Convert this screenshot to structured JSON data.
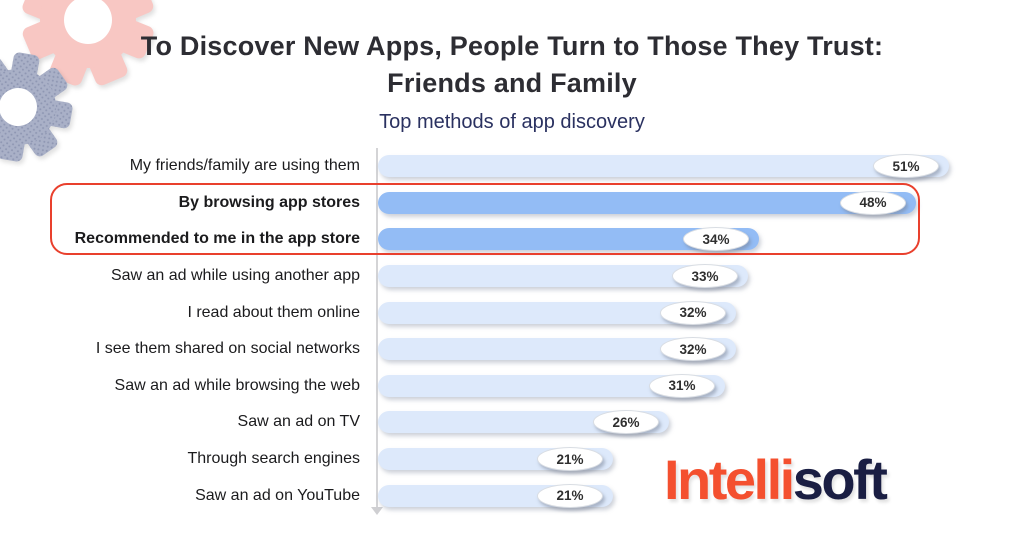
{
  "header": {
    "title_line1": "To Discover New Apps, People Turn to Those They Trust:",
    "title_line2": "Friends and Family",
    "subtitle": "Top methods of app discovery"
  },
  "chart_data": {
    "type": "bar",
    "orientation": "horizontal",
    "title": "To Discover New Apps, People Turn to Those They Trust: Friends and Family",
    "subtitle": "Top methods of app discovery",
    "unit": "%",
    "categories": [
      "My friends/family are using them",
      "By browsing app stores",
      "Recommended to me in the app store",
      "Saw an ad while using another app",
      "I read about them online",
      "I see them shared on social networks",
      "Saw an ad while browsing the web",
      "Saw an ad on TV",
      "Through search engines",
      "Saw an ad on YouTube"
    ],
    "values": [
      51,
      48,
      34,
      33,
      32,
      32,
      31,
      26,
      21,
      21
    ],
    "value_labels": [
      "51%",
      "48%",
      "34%",
      "33%",
      "32%",
      "32%",
      "31%",
      "26%",
      "21%",
      "21%"
    ],
    "highlighted_indexes": [
      1,
      2
    ],
    "highlight_note": "red rounded outline drawn around the two app-store rows",
    "xlim": [
      0,
      53
    ],
    "grid": false,
    "legend": false,
    "colors": {
      "bar_default": "#dde9fb",
      "bar_highlight": "#93bcf5",
      "highlight_outline": "#e9402d",
      "value_badge_bg": "#ffffff",
      "axis_line": "#d4d4d6",
      "title_text": "#2d2d33",
      "subtitle_text": "#2a3160",
      "label_text": "#1b1b1d"
    }
  },
  "logo": {
    "part1": "Intelli",
    "part2": "soft",
    "part1_color": "#f4502f",
    "part2_color": "#1a1e43"
  },
  "decor": {
    "gear_pink_color": "#f8c7c3",
    "gear_gray_color": "#a9b0c7",
    "gear_gray_dot_color": "#8f97b3"
  }
}
